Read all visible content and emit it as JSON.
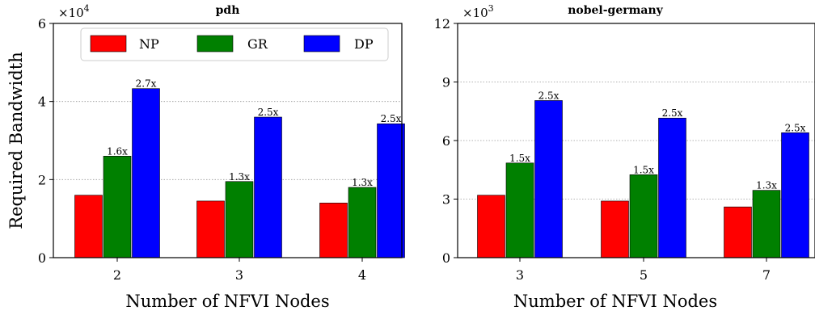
{
  "chart_data": [
    {
      "type": "bar",
      "title": "pdh",
      "xlabel": "Number of NFVI Nodes",
      "ylabel": "Required Bandwidth",
      "multiplier": "×10",
      "multiplier_exp": "4",
      "categories": [
        "2",
        "3",
        "4"
      ],
      "yticks": [
        "0",
        "2",
        "4",
        "6"
      ],
      "ylim": [
        0,
        6
      ],
      "grid": "horizontal dotted",
      "legend_position": "top",
      "series": [
        {
          "name": "NP",
          "color": "#ff0000",
          "values": [
            1.6,
            1.45,
            1.4
          ],
          "labels": [
            "",
            "",
            ""
          ]
        },
        {
          "name": "GR",
          "color": "#008000",
          "values": [
            2.6,
            1.95,
            1.8
          ],
          "labels": [
            "1.6x",
            "1.3x",
            "1.3x"
          ]
        },
        {
          "name": "DP",
          "color": "#0000ff",
          "values": [
            4.33,
            3.6,
            3.43
          ],
          "labels": [
            "2.7x",
            "2.5x",
            "2.5x"
          ]
        }
      ]
    },
    {
      "type": "bar",
      "title": "nobel-germany",
      "xlabel": "Number of NFVI Nodes",
      "ylabel": "",
      "multiplier": "×10",
      "multiplier_exp": "3",
      "categories": [
        "3",
        "5",
        "7"
      ],
      "yticks": [
        "0",
        "3",
        "6",
        "9",
        "12"
      ],
      "ylim": [
        0,
        12
      ],
      "grid": "horizontal dotted",
      "series": [
        {
          "name": "NP",
          "color": "#ff0000",
          "values": [
            3.2,
            2.9,
            2.6
          ],
          "labels": [
            "",
            "",
            ""
          ]
        },
        {
          "name": "GR",
          "color": "#008000",
          "values": [
            4.85,
            4.25,
            3.45
          ],
          "labels": [
            "1.5x",
            "1.5x",
            "1.3x"
          ]
        },
        {
          "name": "DP",
          "color": "#0000ff",
          "values": [
            8.05,
            7.15,
            6.4
          ],
          "labels": [
            "2.5x",
            "2.5x",
            "2.5x"
          ]
        }
      ]
    }
  ]
}
